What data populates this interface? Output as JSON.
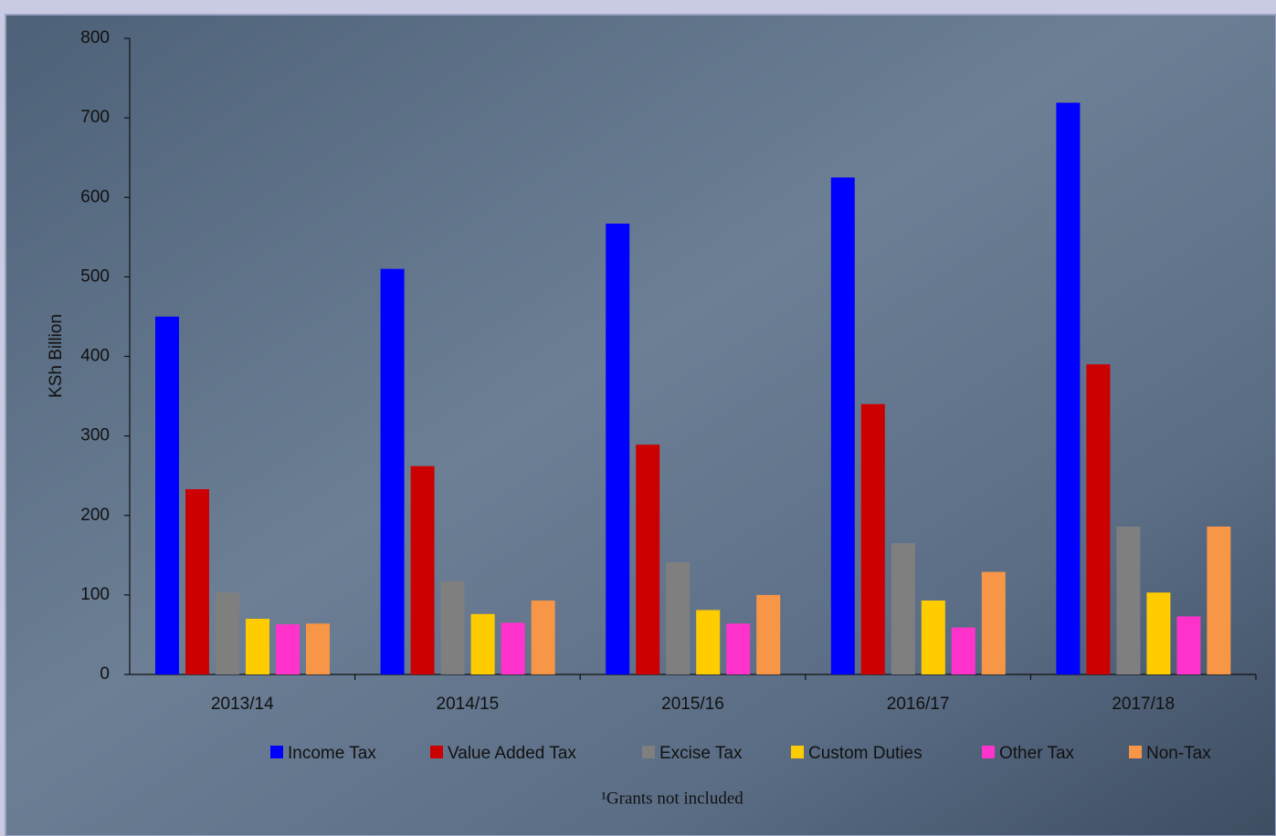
{
  "chart_data": {
    "type": "bar",
    "y_label": "KSh Billion",
    "footnote": "¹Grants not included",
    "categories": [
      "2013/14",
      "2014/15",
      "2015/16",
      "2016/17",
      "2017/18"
    ],
    "series": [
      {
        "name": "Income Tax",
        "color": "#0000ff",
        "values": [
          450,
          510,
          567,
          625,
          719
        ]
      },
      {
        "name": "Value Added Tax",
        "color": "#cc0000",
        "values": [
          233,
          262,
          289,
          340,
          390
        ]
      },
      {
        "name": "Excise Tax",
        "color": "#7f7f7f",
        "values": [
          103,
          117,
          141,
          165,
          186
        ]
      },
      {
        "name": "Custom Duties",
        "color": "#ffcc00",
        "values": [
          70,
          76,
          81,
          93,
          103
        ]
      },
      {
        "name": "Other Tax",
        "color": "#ff33cc",
        "values": [
          63,
          65,
          64,
          59,
          73
        ]
      },
      {
        "name": "Non-Tax",
        "color": "#f79646",
        "values": [
          64,
          93,
          100,
          129,
          186
        ]
      }
    ],
    "ylim": [
      0,
      800
    ],
    "yticks": [
      0,
      100,
      200,
      300,
      400,
      500,
      600,
      700,
      800
    ]
  }
}
